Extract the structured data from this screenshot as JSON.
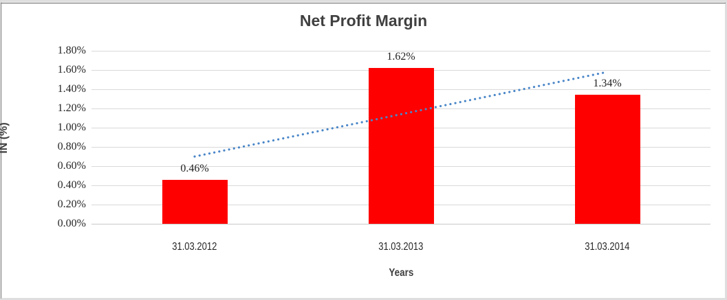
{
  "chart_data": {
    "type": "bar",
    "title": "Net Profit Margin",
    "xlabel": "Years",
    "ylabel": "IN (%)",
    "categories": [
      "31.03.2012",
      "31.03.2013",
      "31.03.2014"
    ],
    "values": [
      0.46,
      1.62,
      1.34
    ],
    "data_labels": [
      "0.46%",
      "1.62%",
      "1.34%"
    ],
    "ytick_values": [
      1.8,
      1.6,
      1.4,
      1.2,
      1.0,
      0.8,
      0.6,
      0.4,
      0.2,
      0.0
    ],
    "ytick_labels": [
      "1.80%",
      "1.60%",
      "1.40%",
      "1.20%",
      "1.00%",
      "0.80%",
      "0.60%",
      "0.40%",
      "0.20%",
      "0.00%"
    ],
    "ylim": [
      0,
      1.8
    ],
    "grid": true,
    "legend": "none",
    "bar_color": "#ff0000",
    "trendline": {
      "type": "linear",
      "style": "dotted",
      "color": "#4a86c8",
      "endpoints_percent": [
        0.7,
        1.58
      ]
    },
    "colors": {
      "gridline": "#d9d9d9",
      "axis_text": "#262626",
      "title_text": "#404040",
      "frame": "#646464"
    }
  }
}
